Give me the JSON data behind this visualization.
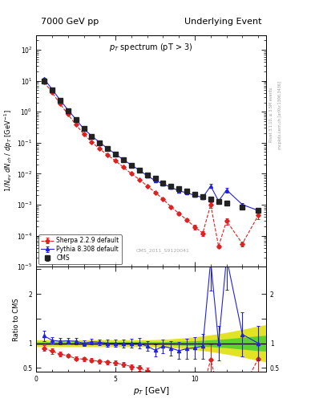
{
  "title_left": "7000 GeV pp",
  "title_right": "Underlying Event",
  "main_title": "p_{T} spectrum (pT > 3)",
  "ylabel_main": "1/N_{ev} dN_{ch} / dp_{T}  [GeV^{-1}]",
  "ylabel_ratio": "Ratio to CMS",
  "xlabel": "p_{T} [GeV]",
  "watermark": "CMS_2011_S9120041",
  "right_label": "mcplots.cern.ch [arXiv:1306.3436]",
  "rivet_label": "Rivet 3.1.10, ≥ 3.5M events",
  "cms_x": [
    0.5,
    1.0,
    1.5,
    2.0,
    2.5,
    3.0,
    3.5,
    4.0,
    4.5,
    5.0,
    5.5,
    6.0,
    6.5,
    7.0,
    7.5,
    8.0,
    8.5,
    9.0,
    9.5,
    10.0,
    10.5,
    11.0,
    11.5,
    12.0,
    13.0,
    14.0
  ],
  "cms_y": [
    10.0,
    5.0,
    2.3,
    1.1,
    0.55,
    0.28,
    0.16,
    0.1,
    0.065,
    0.043,
    0.028,
    0.019,
    0.013,
    0.009,
    0.007,
    0.005,
    0.004,
    0.0033,
    0.0027,
    0.0022,
    0.0018,
    0.0015,
    0.0013,
    0.0011,
    0.00085,
    0.00065
  ],
  "cms_yerr": [
    0.5,
    0.25,
    0.1,
    0.05,
    0.025,
    0.012,
    0.007,
    0.004,
    0.003,
    0.002,
    0.0013,
    0.0009,
    0.0006,
    0.0004,
    0.0003,
    0.0002,
    0.00018,
    0.00014,
    0.00012,
    0.0001,
    8e-05,
    7e-05,
    6e-05,
    5e-05,
    4e-05,
    3e-05
  ],
  "pythia_x": [
    0.5,
    1.0,
    1.5,
    2.0,
    2.5,
    3.0,
    3.5,
    4.0,
    4.5,
    5.0,
    5.5,
    6.0,
    6.5,
    7.0,
    7.5,
    8.0,
    8.5,
    9.0,
    9.5,
    10.0,
    10.5,
    11.0,
    11.5,
    12.0,
    13.0,
    14.0
  ],
  "pythia_y": [
    11.5,
    5.3,
    2.4,
    1.15,
    0.57,
    0.28,
    0.165,
    0.102,
    0.065,
    0.043,
    0.028,
    0.019,
    0.013,
    0.0085,
    0.006,
    0.0047,
    0.0036,
    0.0028,
    0.0024,
    0.002,
    0.0017,
    0.004,
    0.0013,
    0.003,
    0.001,
    0.00065
  ],
  "pythia_yerr": [
    0.5,
    0.25,
    0.1,
    0.05,
    0.025,
    0.012,
    0.007,
    0.004,
    0.003,
    0.002,
    0.0013,
    0.0009,
    0.0006,
    0.0004,
    0.0003,
    0.0002,
    0.00018,
    0.00014,
    0.00012,
    0.0001,
    9e-05,
    0.0006,
    0.0001,
    0.0005,
    0.00015,
    5e-05
  ],
  "sherpa_x": [
    0.5,
    1.0,
    1.5,
    2.0,
    2.5,
    3.0,
    3.5,
    4.0,
    4.5,
    5.0,
    5.5,
    6.0,
    6.5,
    7.0,
    7.5,
    8.0,
    8.5,
    9.0,
    9.5,
    10.0,
    10.5,
    11.0,
    11.5,
    12.0,
    13.0,
    14.0
  ],
  "sherpa_y": [
    9.0,
    4.2,
    1.8,
    0.82,
    0.38,
    0.19,
    0.105,
    0.063,
    0.04,
    0.026,
    0.016,
    0.01,
    0.0065,
    0.004,
    0.0025,
    0.0015,
    0.00085,
    0.00052,
    0.00032,
    0.00019,
    0.00012,
    0.001,
    4.5e-05,
    0.0003,
    5.5e-05,
    0.00045
  ],
  "sherpa_yerr": [
    0.45,
    0.2,
    0.09,
    0.04,
    0.018,
    0.009,
    0.005,
    0.003,
    0.002,
    0.0013,
    0.0009,
    0.0006,
    0.0004,
    0.0002,
    0.00015,
    0.0001,
    7e-05,
    5e-05,
    4e-05,
    3e-05,
    2e-05,
    0.0002,
    5e-06,
    7e-05,
    1e-05,
    0.0001
  ],
  "ratio_pythia_x": [
    0.5,
    1.0,
    1.5,
    2.0,
    2.5,
    3.0,
    3.5,
    4.0,
    4.5,
    5.0,
    5.5,
    6.0,
    6.5,
    7.0,
    7.5,
    8.0,
    8.5,
    9.0,
    9.5,
    10.0,
    10.5,
    11.0,
    11.5,
    12.0,
    13.0,
    14.0
  ],
  "ratio_pythia_y": [
    1.15,
    1.06,
    1.04,
    1.05,
    1.04,
    1.0,
    1.03,
    1.02,
    1.0,
    1.0,
    1.0,
    1.0,
    1.0,
    0.94,
    0.86,
    0.94,
    0.9,
    0.85,
    0.89,
    0.91,
    0.94,
    2.67,
    1.0,
    2.73,
    1.18,
    1.0
  ],
  "ratio_pythia_yerr": [
    0.1,
    0.07,
    0.06,
    0.06,
    0.06,
    0.06,
    0.06,
    0.06,
    0.07,
    0.07,
    0.08,
    0.09,
    0.1,
    0.1,
    0.12,
    0.14,
    0.15,
    0.17,
    0.2,
    0.22,
    0.25,
    0.6,
    0.35,
    0.65,
    0.45,
    0.35
  ],
  "ratio_sherpa_x": [
    0.5,
    1.0,
    1.5,
    2.0,
    2.5,
    3.0,
    3.5,
    4.0,
    4.5,
    5.0,
    5.5,
    6.0,
    6.5,
    7.0,
    7.5,
    8.0,
    8.5,
    9.0,
    9.5,
    10.0,
    10.5,
    11.0,
    11.5,
    12.0,
    13.0,
    14.0
  ],
  "ratio_sherpa_y": [
    0.9,
    0.84,
    0.78,
    0.75,
    0.69,
    0.68,
    0.66,
    0.63,
    0.62,
    0.6,
    0.57,
    0.53,
    0.5,
    0.44,
    0.36,
    0.3,
    0.21,
    0.16,
    0.12,
    0.086,
    0.067,
    0.67,
    0.035,
    0.27,
    0.065,
    0.69
  ],
  "ratio_sherpa_yerr": [
    0.06,
    0.05,
    0.05,
    0.04,
    0.04,
    0.04,
    0.04,
    0.04,
    0.04,
    0.05,
    0.05,
    0.05,
    0.06,
    0.06,
    0.07,
    0.08,
    0.08,
    0.09,
    0.09,
    0.08,
    0.08,
    0.3,
    0.02,
    0.12,
    0.03,
    0.3
  ],
  "band_x": [
    0.0,
    1.0,
    2.0,
    3.0,
    4.0,
    5.0,
    6.0,
    7.0,
    8.0,
    9.0,
    10.0,
    11.0,
    12.0,
    13.0,
    14.0,
    15.0
  ],
  "band_green_lo": [
    0.97,
    0.97,
    0.97,
    0.97,
    0.97,
    0.97,
    0.97,
    0.97,
    0.97,
    0.96,
    0.95,
    0.93,
    0.91,
    0.88,
    0.85,
    0.83
  ],
  "band_green_hi": [
    1.03,
    1.03,
    1.03,
    1.03,
    1.03,
    1.03,
    1.03,
    1.03,
    1.03,
    1.04,
    1.05,
    1.07,
    1.09,
    1.12,
    1.15,
    1.17
  ],
  "band_yellow_lo": [
    0.93,
    0.93,
    0.93,
    0.93,
    0.93,
    0.93,
    0.93,
    0.93,
    0.92,
    0.9,
    0.87,
    0.83,
    0.78,
    0.72,
    0.65,
    0.6
  ],
  "band_yellow_hi": [
    1.07,
    1.07,
    1.07,
    1.07,
    1.07,
    1.07,
    1.07,
    1.07,
    1.08,
    1.1,
    1.13,
    1.17,
    1.22,
    1.28,
    1.35,
    1.4
  ],
  "cms_color": "#222222",
  "pythia_color": "#2222dd",
  "sherpa_color": "#dd2222",
  "green_band_color": "#33cc33",
  "yellow_band_color": "#dddd00",
  "ylim_main": [
    1e-05,
    300
  ],
  "ylim_ratio": [
    0.42,
    2.55
  ],
  "xlim": [
    0.0,
    14.5
  ]
}
